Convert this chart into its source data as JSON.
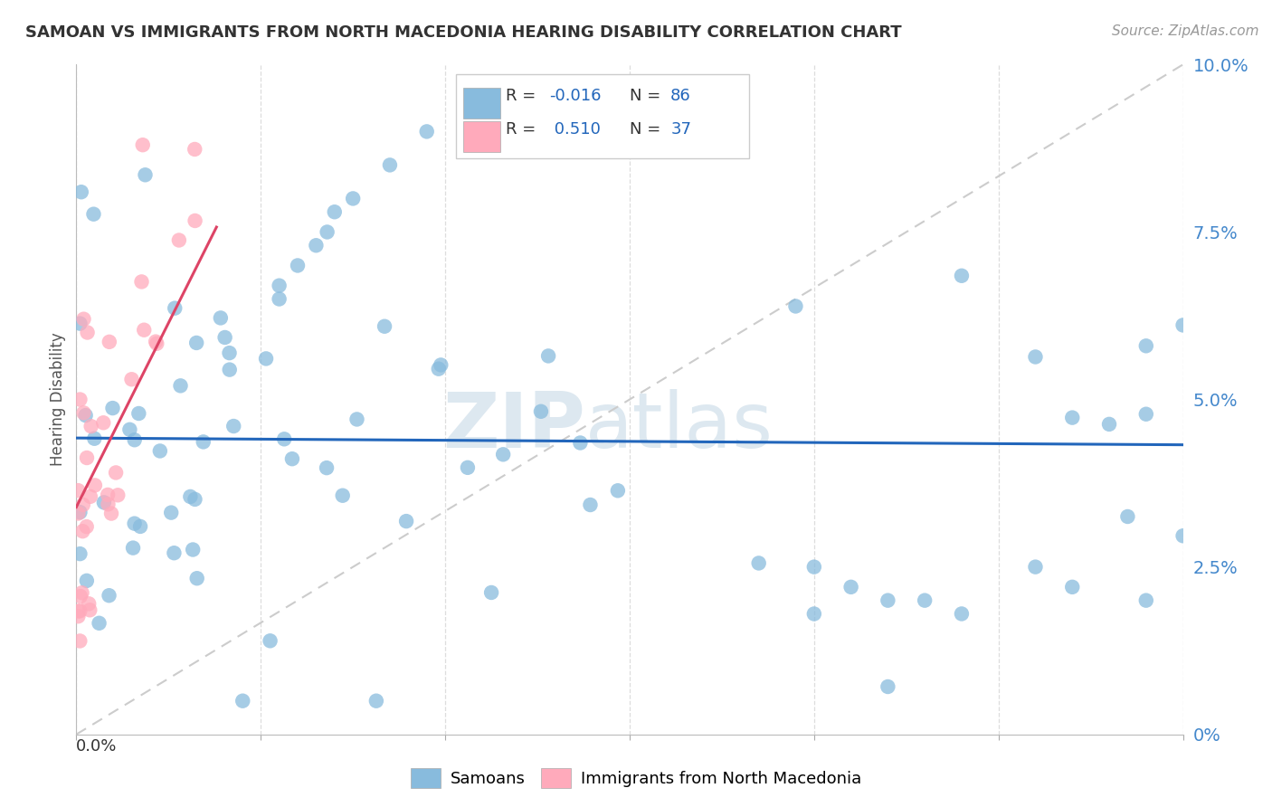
{
  "title": "SAMOAN VS IMMIGRANTS FROM NORTH MACEDONIA HEARING DISABILITY CORRELATION CHART",
  "source": "Source: ZipAtlas.com",
  "ylabel": "Hearing Disability",
  "ylabel_right_values": [
    0.0,
    0.025,
    0.05,
    0.075,
    0.1
  ],
  "xmin": 0.0,
  "xmax": 0.3,
  "ymin": 0.0,
  "ymax": 0.1,
  "legend_blue_R": "-0.016",
  "legend_blue_N": "86",
  "legend_pink_R": "0.510",
  "legend_pink_N": "37",
  "blue_color": "#88BBDD",
  "pink_color": "#FFAABB",
  "blue_line_color": "#2266BB",
  "pink_line_color": "#DD4466",
  "ref_line_color": "#CCCCCC",
  "background_color": "#FFFFFF",
  "grid_color": "#DDDDDD",
  "right_tick_color": "#4488CC",
  "watermark_color": "#DDE8F0"
}
